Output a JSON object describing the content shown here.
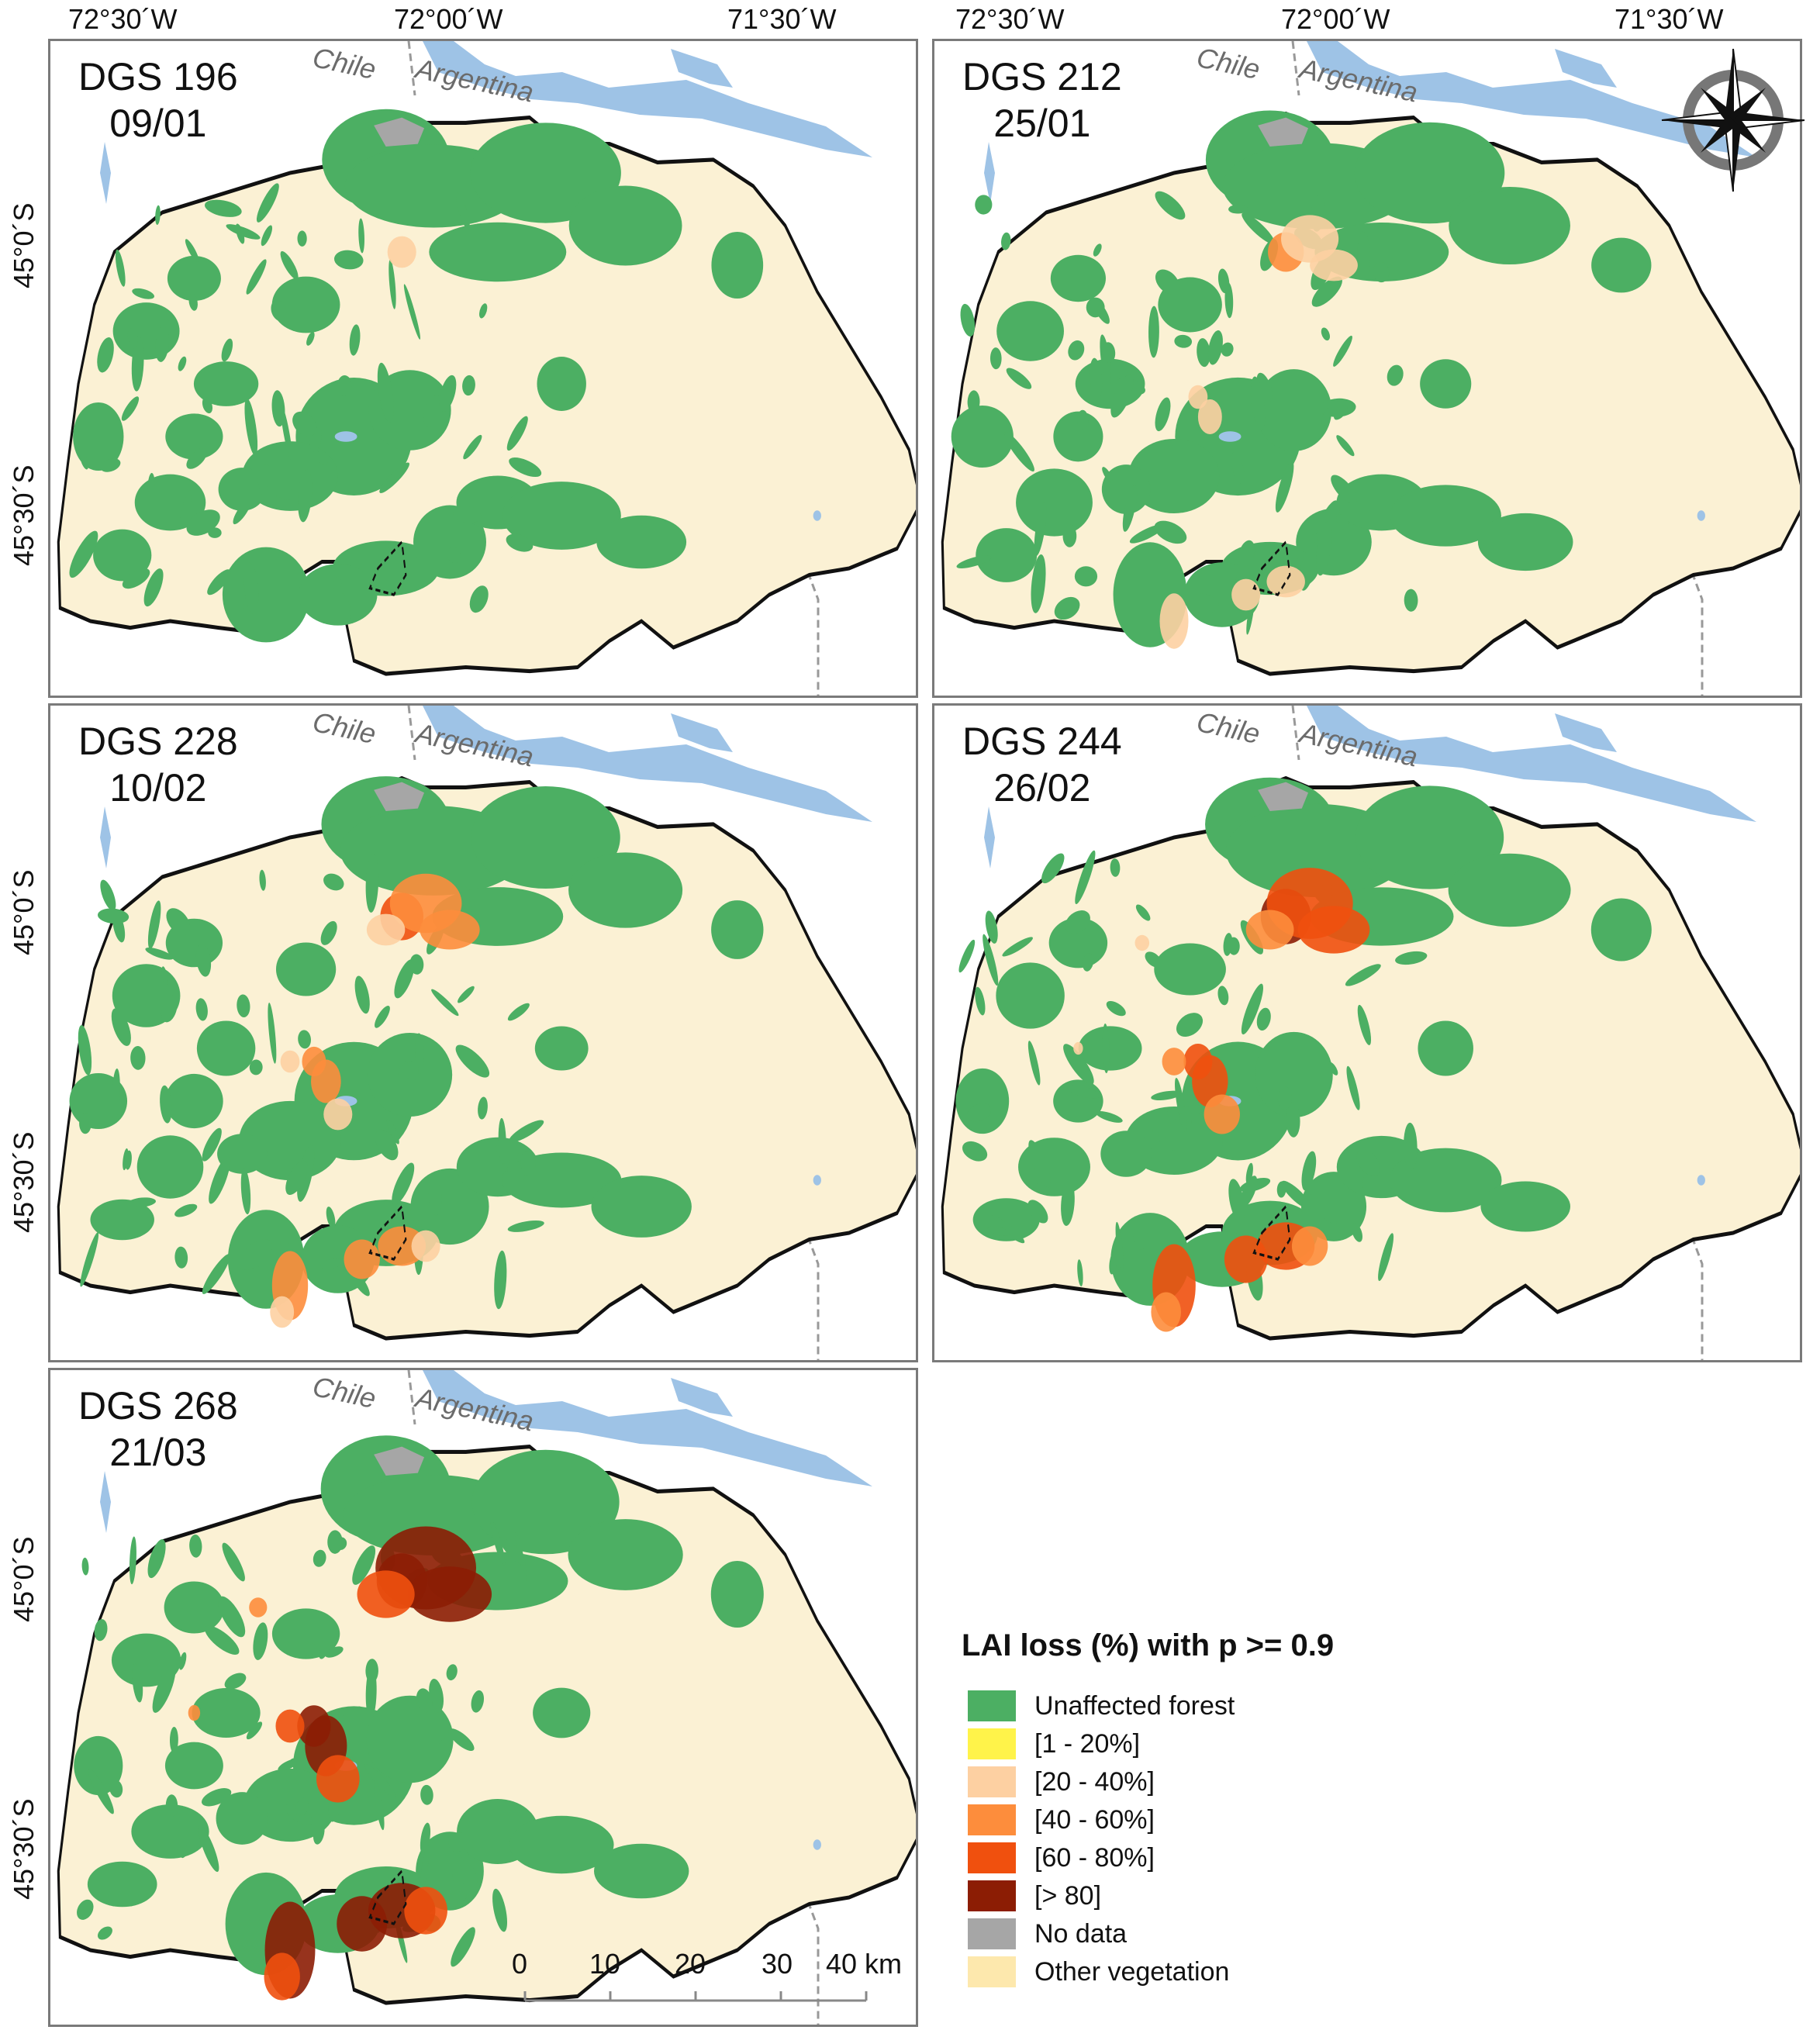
{
  "lon_labels": [
    "72°30´W",
    "72°00´W",
    "71°30´W"
  ],
  "lat_labels": [
    "45°0´S",
    "45°30´S"
  ],
  "country_labels": {
    "left": "Chile",
    "right": "Argentina"
  },
  "panels": [
    {
      "code": "DGS 196",
      "date": "09/01",
      "damage": 0
    },
    {
      "code": "DGS 212",
      "date": "25/01",
      "damage": 1
    },
    {
      "code": "DGS 228",
      "date": "10/02",
      "damage": 2
    },
    {
      "code": "DGS 244",
      "date": "26/02",
      "damage": 3
    },
    {
      "code": "DGS 268",
      "date": "21/03",
      "damage": 4
    }
  ],
  "legend": {
    "title": "LAI loss (%) with p >= 0.9",
    "items": [
      {
        "label": "Unaffected forest",
        "color": "#4caf63"
      },
      {
        "label": "[1 - 20%]",
        "color": "#fff34a"
      },
      {
        "label": "[20 - 40%]",
        "color": "#fdd0a2"
      },
      {
        "label": "[40 - 60%]",
        "color": "#fd8d3c"
      },
      {
        "label": "[60 - 80%]",
        "color": "#f0500e"
      },
      {
        "label": "[> 80]",
        "color": "#8c1d04"
      },
      {
        "label": "No data",
        "color": "#a6a6a6"
      },
      {
        "label": "Other vegetation",
        "color": "#fde8ad"
      }
    ]
  },
  "scale_bar": {
    "ticks": [
      "0",
      "10",
      "20",
      "30",
      "40 km"
    ]
  },
  "colors": {
    "water": "#9ec3e6",
    "land": "#fbf1d4",
    "forest": "#4caf63",
    "outline": "#111111"
  }
}
